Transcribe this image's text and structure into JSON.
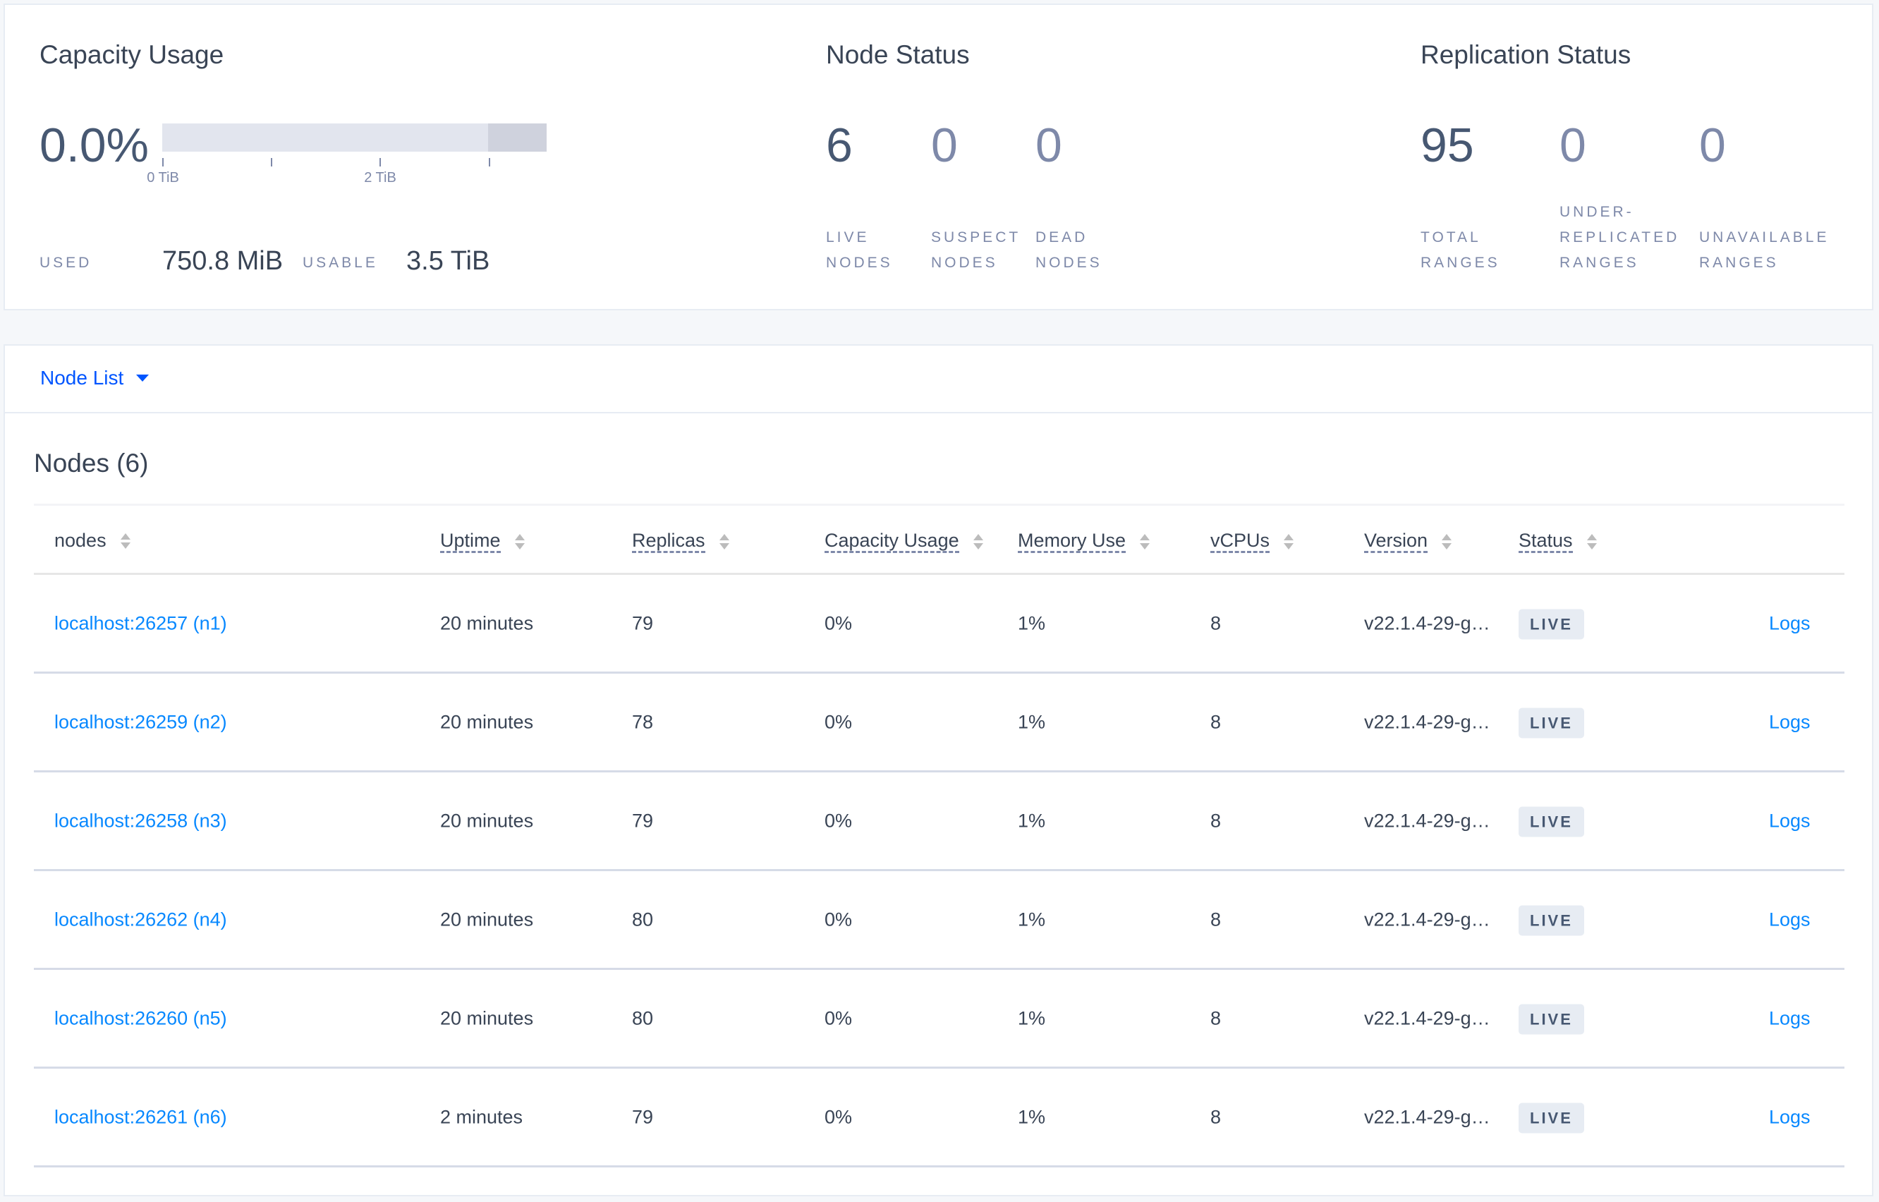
{
  "capacity": {
    "title": "Capacity Usage",
    "percent": "0.0%",
    "usage_fraction": 0.0,
    "ticks": [
      "0 TiB",
      "2 TiB"
    ],
    "used_label": "USED",
    "used_value": "750.8 MiB",
    "usable_label": "USABLE",
    "usable_value": "3.5 TiB"
  },
  "node_status": {
    "title": "Node Status",
    "stats": [
      {
        "value": "6",
        "label1": "LIVE",
        "label2": "NODES"
      },
      {
        "value": "0",
        "label1": "SUSPECT",
        "label2": "NODES"
      },
      {
        "value": "0",
        "label1": "DEAD",
        "label2": "NODES"
      }
    ]
  },
  "replication": {
    "title": "Replication Status",
    "stats": [
      {
        "value": "95",
        "label1": "TOTAL",
        "label2": "RANGES"
      },
      {
        "value": "0",
        "label0": "UNDER-",
        "label1": "REPLICATED",
        "label2": "RANGES"
      },
      {
        "value": "0",
        "label1": "UNAVAILABLE",
        "label2": "RANGES"
      }
    ]
  },
  "node_list": {
    "dropdown_label": "Node List",
    "heading": "Nodes (6)",
    "columns": [
      "nodes",
      "Uptime",
      "Replicas",
      "Capacity Usage",
      "Memory Use",
      "vCPUs",
      "Version",
      "Status"
    ],
    "rows": [
      [
        "localhost:26257 (n1)",
        "20 minutes",
        "79",
        "0%",
        "1%",
        "8",
        "v22.1.4-29-g…",
        "LIVE",
        "Logs"
      ],
      [
        "localhost:26259 (n2)",
        "20 minutes",
        "78",
        "0%",
        "1%",
        "8",
        "v22.1.4-29-g…",
        "LIVE",
        "Logs"
      ],
      [
        "localhost:26258 (n3)",
        "20 minutes",
        "79",
        "0%",
        "1%",
        "8",
        "v22.1.4-29-g…",
        "LIVE",
        "Logs"
      ],
      [
        "localhost:26262 (n4)",
        "20 minutes",
        "80",
        "0%",
        "1%",
        "8",
        "v22.1.4-29-g…",
        "LIVE",
        "Logs"
      ],
      [
        "localhost:26260 (n5)",
        "20 minutes",
        "80",
        "0%",
        "1%",
        "8",
        "v22.1.4-29-g…",
        "LIVE",
        "Logs"
      ],
      [
        "localhost:26261 (n6)",
        "2 minutes",
        "79",
        "0%",
        "1%",
        "8",
        "v22.1.4-29-g…",
        "LIVE",
        "Logs"
      ]
    ]
  },
  "colors": {
    "link": "#0788ff",
    "accent": "#0055ff",
    "badge_bg": "#e7ecf3"
  }
}
